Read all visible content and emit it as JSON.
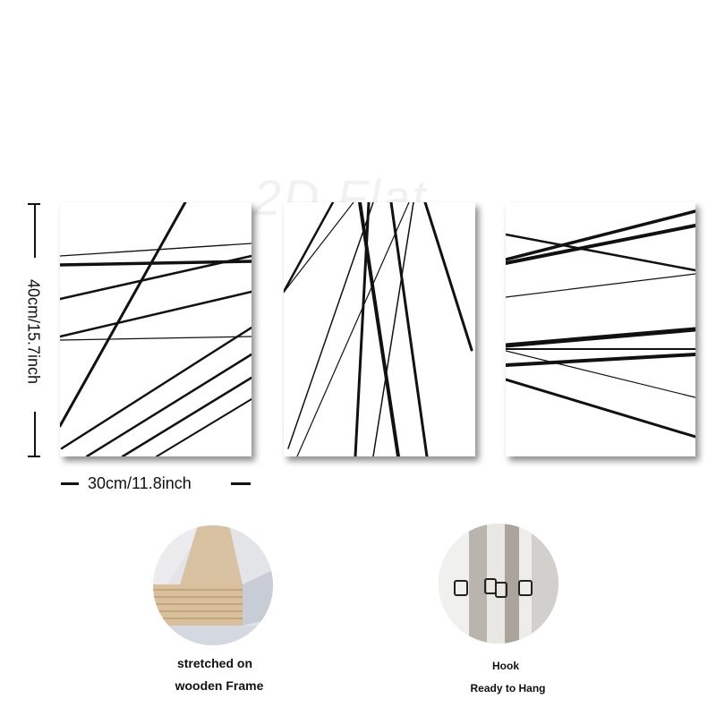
{
  "dimensions": {
    "height_label": "40cm/15.7inch",
    "width_label": "30cm/11.8inch"
  },
  "watermark": "2D Flat",
  "details": {
    "frame_caption_line1": "stretched on",
    "frame_caption_line2": "wooden Frame",
    "hook_caption_line1": "Hook",
    "hook_caption_line2": "Ready to Hang"
  },
  "colors": {
    "background": "#ffffff",
    "line_ink": "#111111",
    "wood": "#d9bf9a"
  }
}
